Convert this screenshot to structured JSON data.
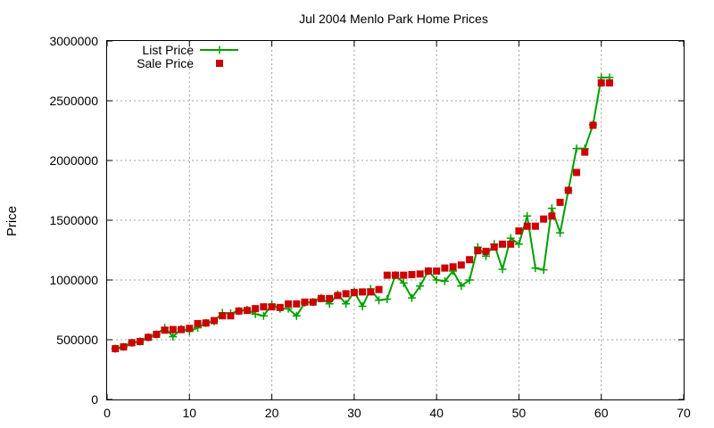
{
  "chart_data": {
    "type": "line",
    "title": "Jul 2004 Menlo Park Home Prices",
    "xlabel": "",
    "ylabel": "Price",
    "xlim": [
      0,
      70
    ],
    "ylim": [
      0,
      3000000
    ],
    "xticks": [
      0,
      10,
      20,
      30,
      40,
      50,
      60,
      70
    ],
    "yticks": [
      0,
      500000,
      1000000,
      1500000,
      2000000,
      2500000,
      3000000
    ],
    "grid": true,
    "legend_position": "top-left",
    "series": [
      {
        "name": "List Price",
        "style": "line-with-plus-markers",
        "color": "#00a000",
        "x": [
          1,
          2,
          3,
          4,
          5,
          6,
          7,
          8,
          9,
          10,
          11,
          12,
          13,
          14,
          15,
          16,
          17,
          18,
          19,
          20,
          21,
          22,
          23,
          24,
          25,
          26,
          27,
          28,
          29,
          30,
          31,
          32,
          33,
          34,
          35,
          36,
          37,
          38,
          39,
          40,
          41,
          42,
          43,
          44,
          45,
          46,
          47,
          48,
          49,
          50,
          51,
          52,
          53,
          54,
          55,
          56,
          57,
          58,
          59,
          60,
          61
        ],
        "y": [
          425000,
          440000,
          475000,
          485000,
          520000,
          545000,
          600000,
          525000,
          590000,
          570000,
          600000,
          640000,
          655000,
          725000,
          720000,
          740000,
          750000,
          715000,
          700000,
          795000,
          760000,
          760000,
          700000,
          810000,
          815000,
          850000,
          800000,
          880000,
          800000,
          900000,
          780000,
          925000,
          830000,
          840000,
          1040000,
          975000,
          850000,
          950000,
          1075000,
          1000000,
          990000,
          1075000,
          950000,
          1000000,
          1275000,
          1200000,
          1300000,
          1090000,
          1350000,
          1300000,
          1535000,
          1100000,
          1085000,
          1600000,
          1395000,
          1750000,
          2100000,
          2100000,
          2300000,
          2695000,
          2695000
        ]
      },
      {
        "name": "Sale Price",
        "style": "square-markers",
        "color": "#cc0000",
        "x": [
          1,
          2,
          3,
          4,
          5,
          6,
          7,
          8,
          9,
          10,
          11,
          12,
          13,
          14,
          15,
          16,
          17,
          18,
          19,
          20,
          21,
          22,
          23,
          24,
          25,
          26,
          27,
          28,
          29,
          30,
          31,
          32,
          33,
          34,
          35,
          36,
          37,
          38,
          39,
          40,
          41,
          42,
          43,
          44,
          45,
          46,
          47,
          48,
          49,
          50,
          51,
          52,
          53,
          54,
          55,
          56,
          57,
          58,
          59,
          60,
          61
        ],
        "y": [
          425000,
          440000,
          475000,
          485000,
          520000,
          545000,
          580000,
          585000,
          585000,
          595000,
          635000,
          640000,
          660000,
          700000,
          700000,
          740000,
          745000,
          760000,
          775000,
          775000,
          770000,
          800000,
          800000,
          815000,
          815000,
          845000,
          845000,
          870000,
          885000,
          895000,
          900000,
          900000,
          920000,
          1040000,
          1040000,
          1040000,
          1045000,
          1050000,
          1075000,
          1075000,
          1100000,
          1110000,
          1125000,
          1170000,
          1245000,
          1240000,
          1275000,
          1300000,
          1300000,
          1410000,
          1450000,
          1450000,
          1510000,
          1535000,
          1650000,
          1750000,
          1900000,
          2070000,
          2295000,
          2650000,
          2650000
        ]
      }
    ]
  },
  "colors": {
    "grid": "#a0a0a0",
    "axis": "#000000"
  }
}
